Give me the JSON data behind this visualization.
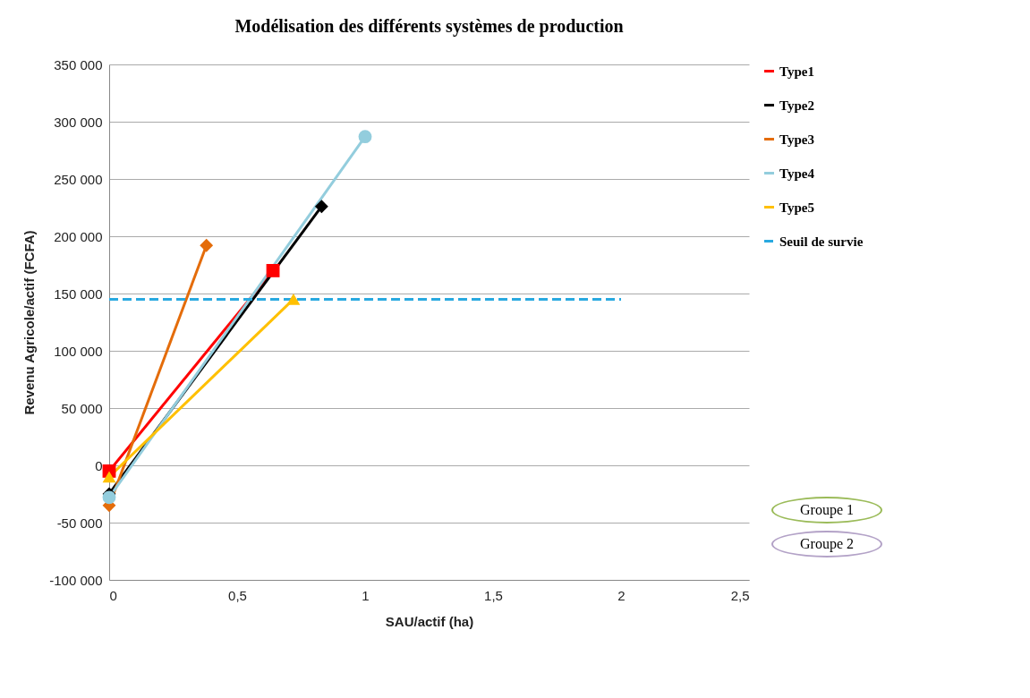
{
  "chart_data": {
    "type": "line",
    "title": "Modélisation des différents systèmes de production",
    "xlabel": "SAU/actif (ha)",
    "ylabel": "Revenu Agricole/actif (FCFA)",
    "xlim": [
      0,
      2.5
    ],
    "xticks": [
      0,
      {
        "value": 0.5,
        "label": "0,5"
      },
      1,
      {
        "value": 1.5,
        "label": "1,5"
      },
      2,
      {
        "value": 2.5,
        "label": "2,5"
      }
    ],
    "ylim": [
      -100000,
      350000
    ],
    "yticks": [
      {
        "value": -100000,
        "label": "-100 000"
      },
      {
        "value": -50000,
        "label": "-50 000"
      },
      0,
      {
        "value": 50000,
        "label": "50 000"
      },
      {
        "value": 100000,
        "label": "100 000"
      },
      {
        "value": 150000,
        "label": "150 000"
      },
      {
        "value": 200000,
        "label": "200 000"
      },
      {
        "value": 250000,
        "label": "250 000"
      },
      {
        "value": 300000,
        "label": "300 000"
      },
      {
        "value": 350000,
        "label": "350 000"
      }
    ],
    "grid": "y",
    "legend": "right",
    "line_style": "solid",
    "series": [
      {
        "name": "Type1",
        "color": "#ff0000",
        "marker": "square",
        "x": [
          0,
          0.64
        ],
        "values": [
          -5000,
          170000
        ]
      },
      {
        "name": "Type2",
        "color": "#000000",
        "marker": "diamond",
        "x": [
          0,
          0.83
        ],
        "values": [
          -25000,
          226000
        ]
      },
      {
        "name": "Type3",
        "color": "#e46c0a",
        "marker": "diamond",
        "x": [
          0,
          0.38
        ],
        "values": [
          -35000,
          192000
        ]
      },
      {
        "name": "Type4",
        "color": "#93cddd",
        "marker": "circle",
        "x": [
          0,
          1
        ],
        "values": [
          -28000,
          287000
        ]
      },
      {
        "name": "Type5",
        "color": "#ffc000",
        "marker": "triangle",
        "x": [
          0,
          0.72
        ],
        "values": [
          -10000,
          145000
        ]
      },
      {
        "name": "Seuil de survie",
        "color": "#29a9e0",
        "marker": "none",
        "line_style": "dashed",
        "x": [
          0,
          2
        ],
        "values": [
          145000,
          145000
        ]
      }
    ],
    "annotations": [
      "Groupe 1",
      "Groupe 2"
    ]
  }
}
